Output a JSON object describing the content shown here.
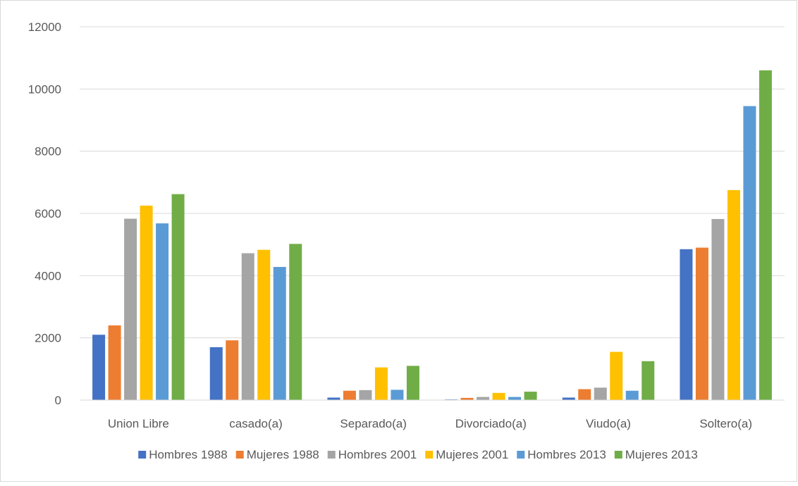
{
  "chart_data": {
    "type": "bar",
    "title": "",
    "xlabel": "",
    "ylabel": "",
    "categories": [
      "Union Libre",
      "casado(a)",
      "Separado(a)",
      "Divorciado(a)",
      "Viudo(a)",
      "Soltero(a)"
    ],
    "ylim": [
      0,
      12000
    ],
    "yticks": [
      0,
      2000,
      4000,
      6000,
      8000,
      10000,
      12000
    ],
    "ytick_labels": [
      "0",
      "2000",
      "4000",
      "6000",
      "8000",
      "10000",
      "12000"
    ],
    "grid": true,
    "legend_position": "bottom",
    "series": [
      {
        "name": "Hombres 1988",
        "color": "#4472c4",
        "values": [
          2100,
          1700,
          80,
          20,
          80,
          4850
        ]
      },
      {
        "name": "Mujeres 1988",
        "color": "#ed7d31",
        "values": [
          2400,
          1920,
          300,
          70,
          350,
          4900
        ]
      },
      {
        "name": "Hombres 2001",
        "color": "#a5a5a5",
        "values": [
          5830,
          4720,
          320,
          100,
          400,
          5820
        ]
      },
      {
        "name": "Mujeres 2001",
        "color": "#ffc000",
        "values": [
          6250,
          4830,
          1050,
          230,
          1550,
          6750
        ]
      },
      {
        "name": "Hombres 2013",
        "color": "#5b9bd5",
        "values": [
          5680,
          4280,
          330,
          100,
          300,
          9450
        ]
      },
      {
        "name": "Mujeres 2013",
        "color": "#70ad47",
        "values": [
          6620,
          5020,
          1100,
          270,
          1250,
          10600
        ]
      }
    ]
  }
}
